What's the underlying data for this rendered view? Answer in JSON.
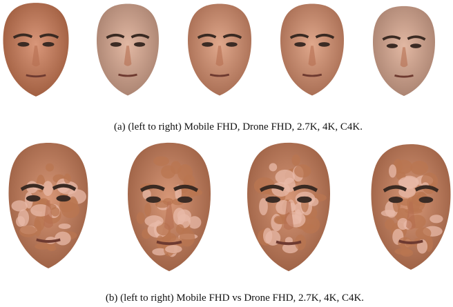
{
  "captions": {
    "a": "(a) (left to right) Mobile FHD, Drone FHD, 2.7K, 4K, C4K.",
    "b": "(b) (left to right) Mobile FHD vs Drone FHD, 2.7K, 4K, C4K."
  }
}
